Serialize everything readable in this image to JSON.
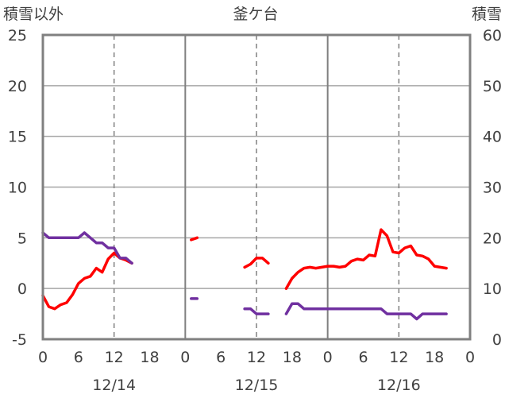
{
  "chart_data": {
    "type": "line",
    "title": "釜ケ台",
    "ylabel_left": "積雪以外",
    "ylabel_right": "積雪",
    "y_left_range": [
      -5,
      25
    ],
    "y_left_ticks": [
      "-5",
      "0",
      "5",
      "10",
      "15",
      "20",
      "25"
    ],
    "y_right_range": [
      0,
      60
    ],
    "y_right_ticks": [
      "0",
      "10",
      "20",
      "30",
      "40",
      "50",
      "60"
    ],
    "x_hour_labels": [
      "0",
      "6",
      "12",
      "18",
      "0",
      "6",
      "12",
      "18",
      "0",
      "6",
      "12",
      "18",
      "0"
    ],
    "date_labels": [
      "12/14",
      "12/15",
      "12/16"
    ],
    "grid": true,
    "series": [
      {
        "color": "#ff0000",
        "axis": "left",
        "segments": [
          [
            [
              0,
              -0.7
            ],
            [
              1,
              -1.8
            ],
            [
              2,
              -2.0
            ],
            [
              3,
              -1.6
            ],
            [
              4,
              -1.4
            ],
            [
              5,
              -0.6
            ],
            [
              6,
              0.5
            ],
            [
              7,
              1.0
            ],
            [
              8,
              1.2
            ],
            [
              9,
              2.0
            ],
            [
              10,
              1.6
            ],
            [
              11,
              2.9
            ],
            [
              12,
              3.5
            ],
            [
              13,
              3.0
            ],
            [
              14,
              2.8
            ],
            [
              15,
              2.5
            ]
          ],
          [
            [
              25,
              4.8
            ],
            [
              26,
              5.0
            ]
          ],
          [
            [
              34,
              2.1
            ],
            [
              35,
              2.4
            ],
            [
              36,
              3.0
            ],
            [
              37,
              3.0
            ],
            [
              38,
              2.5
            ]
          ],
          [
            [
              41,
              0.0
            ],
            [
              42,
              1.0
            ],
            [
              43,
              1.6
            ],
            [
              44,
              2.0
            ],
            [
              45,
              2.1
            ],
            [
              46,
              2.0
            ],
            [
              47,
              2.1
            ],
            [
              48,
              2.2
            ],
            [
              49,
              2.2
            ],
            [
              50,
              2.1
            ],
            [
              51,
              2.2
            ],
            [
              52,
              2.7
            ],
            [
              53,
              2.9
            ],
            [
              54,
              2.8
            ],
            [
              55,
              3.3
            ],
            [
              56,
              3.2
            ],
            [
              57,
              5.8
            ],
            [
              58,
              5.2
            ],
            [
              59,
              3.6
            ],
            [
              60,
              3.5
            ],
            [
              61,
              4.0
            ],
            [
              62,
              4.2
            ],
            [
              63,
              3.3
            ],
            [
              64,
              3.2
            ],
            [
              65,
              2.9
            ],
            [
              66,
              2.2
            ],
            [
              67,
              2.1
            ],
            [
              68,
              2.0
            ]
          ]
        ]
      },
      {
        "color": "#7030a0",
        "axis": "left",
        "segments": [
          [
            [
              0,
              5.5
            ],
            [
              1,
              5.0
            ],
            [
              2,
              5.0
            ],
            [
              3,
              5.0
            ],
            [
              4,
              5.0
            ],
            [
              5,
              5.0
            ],
            [
              6,
              5.0
            ],
            [
              7,
              5.5
            ],
            [
              8,
              5.0
            ],
            [
              9,
              4.5
            ],
            [
              10,
              4.5
            ],
            [
              11,
              4.0
            ],
            [
              12,
              4.0
            ],
            [
              13,
              3.0
            ],
            [
              14,
              3.0
            ],
            [
              15,
              2.5
            ]
          ],
          [
            [
              25,
              -1.0
            ],
            [
              26,
              -1.0
            ]
          ],
          [
            [
              34,
              -2.0
            ],
            [
              35,
              -2.0
            ],
            [
              36,
              -2.5
            ],
            [
              37,
              -2.5
            ],
            [
              38,
              -2.5
            ]
          ],
          [
            [
              41,
              -2.5
            ],
            [
              42,
              -1.5
            ],
            [
              43,
              -1.5
            ],
            [
              44,
              -2.0
            ],
            [
              45,
              -2.0
            ],
            [
              46,
              -2.0
            ],
            [
              47,
              -2.0
            ],
            [
              48,
              -2.0
            ],
            [
              49,
              -2.0
            ],
            [
              50,
              -2.0
            ],
            [
              51,
              -2.0
            ],
            [
              52,
              -2.0
            ],
            [
              53,
              -2.0
            ],
            [
              54,
              -2.0
            ],
            [
              55,
              -2.0
            ],
            [
              56,
              -2.0
            ],
            [
              57,
              -2.0
            ],
            [
              58,
              -2.5
            ],
            [
              59,
              -2.5
            ],
            [
              60,
              -2.5
            ],
            [
              61,
              -2.5
            ],
            [
              62,
              -2.5
            ],
            [
              63,
              -3.0
            ],
            [
              64,
              -2.5
            ],
            [
              65,
              -2.5
            ],
            [
              66,
              -2.5
            ],
            [
              67,
              -2.5
            ],
            [
              68,
              -2.5
            ]
          ]
        ]
      }
    ]
  }
}
